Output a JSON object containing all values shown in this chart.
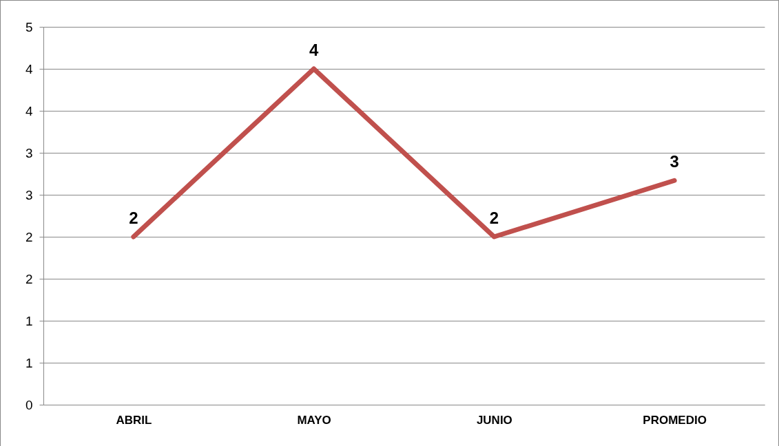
{
  "chart_data": {
    "type": "line",
    "categories": [
      "ABRIL",
      "MAYO",
      "JUNIO",
      "PROMEDIO"
    ],
    "series": [
      {
        "color": "#c0504d",
        "values": [
          2,
          4,
          2,
          2.67
        ],
        "value_labels": [
          "2",
          "4",
          "2",
          "3"
        ]
      }
    ],
    "ylim": [
      0,
      4.5
    ],
    "yticks": [
      0,
      {
        "value": 0.5,
        "label": "1"
      },
      1,
      {
        "value": 1.5,
        "label": "2"
      },
      2,
      {
        "value": 2.5,
        "label": "3"
      },
      3,
      {
        "value": 3.5,
        "label": "4"
      },
      4,
      {
        "value": 4.5,
        "label": "5"
      }
    ],
    "grid": "y",
    "legend": false,
    "marker": "none",
    "line_style": "solid"
  }
}
